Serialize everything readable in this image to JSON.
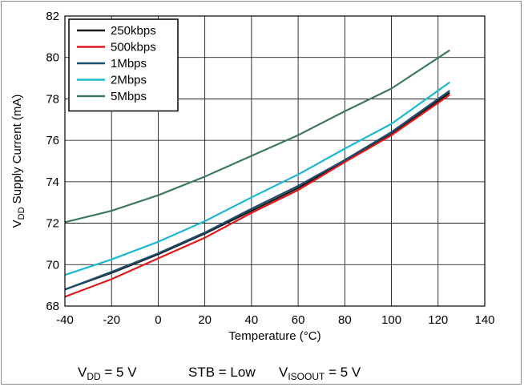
{
  "chart_data": {
    "type": "line",
    "xlabel": "Temperature (°C)",
    "ylabel": {
      "main": "V",
      "sub": "DD",
      "rest": " Supply Current (mA)"
    },
    "xlim": [
      -40,
      140
    ],
    "ylim": [
      68,
      82
    ],
    "x_ticks": [
      -40,
      -20,
      0,
      20,
      40,
      60,
      80,
      100,
      120,
      140
    ],
    "y_ticks": [
      68,
      70,
      72,
      74,
      76,
      78,
      80,
      82
    ],
    "grid": true,
    "legend_position": "top-left",
    "series": [
      {
        "name": "250kbps",
        "color": "#1a1a1a",
        "points": [
          [
            -40,
            68.8
          ],
          [
            -20,
            69.6
          ],
          [
            0,
            70.5
          ],
          [
            20,
            71.5
          ],
          [
            40,
            72.6
          ],
          [
            60,
            73.7
          ],
          [
            80,
            75.0
          ],
          [
            100,
            76.3
          ],
          [
            125,
            78.3
          ]
        ]
      },
      {
        "name": "500kbps",
        "color": "#e0191b",
        "points": [
          [
            -40,
            68.45
          ],
          [
            -20,
            69.3
          ],
          [
            0,
            70.3
          ],
          [
            20,
            71.3
          ],
          [
            40,
            72.5
          ],
          [
            60,
            73.6
          ],
          [
            80,
            74.95
          ],
          [
            100,
            76.25
          ],
          [
            125,
            78.2
          ]
        ]
      },
      {
        "name": "1Mbps",
        "color": "#1f4e6e",
        "points": [
          [
            -40,
            68.8
          ],
          [
            -20,
            69.65
          ],
          [
            0,
            70.55
          ],
          [
            20,
            71.55
          ],
          [
            40,
            72.7
          ],
          [
            60,
            73.8
          ],
          [
            80,
            75.05
          ],
          [
            100,
            76.4
          ],
          [
            125,
            78.4
          ]
        ]
      },
      {
        "name": "2Mbps",
        "color": "#1cb8d2",
        "points": [
          [
            -40,
            69.5
          ],
          [
            -20,
            70.25
          ],
          [
            0,
            71.1
          ],
          [
            20,
            72.1
          ],
          [
            40,
            73.25
          ],
          [
            60,
            74.35
          ],
          [
            80,
            75.6
          ],
          [
            100,
            76.8
          ],
          [
            125,
            78.8
          ]
        ]
      },
      {
        "name": "5Mbps",
        "color": "#3d7a5a",
        "points": [
          [
            -40,
            72.05
          ],
          [
            -20,
            72.6
          ],
          [
            0,
            73.35
          ],
          [
            20,
            74.25
          ],
          [
            40,
            75.25
          ],
          [
            60,
            76.25
          ],
          [
            80,
            77.4
          ],
          [
            100,
            78.5
          ],
          [
            125,
            80.35
          ]
        ]
      }
    ]
  },
  "conditions": {
    "vdd": {
      "main": "V",
      "sub": "DD",
      "rest": " = 5 V"
    },
    "stb": "STB = Low",
    "visoout": {
      "main": "V",
      "sub": "ISOOUT",
      "rest": " = 5 V"
    }
  }
}
